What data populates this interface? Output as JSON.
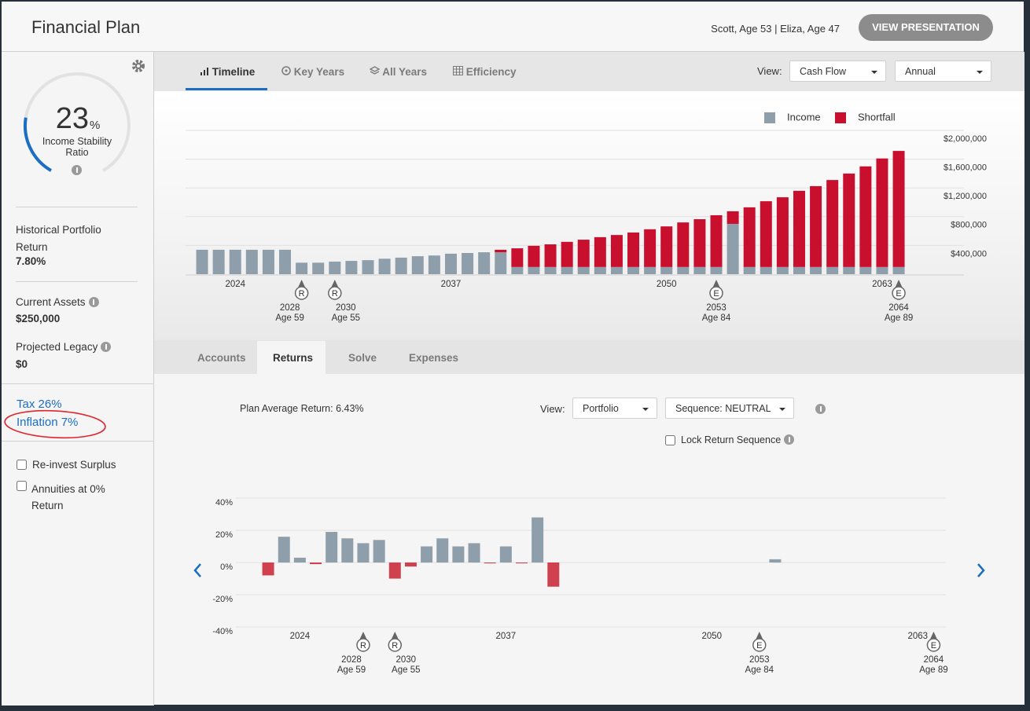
{
  "header": {
    "title": "Financial Plan",
    "clients": "Scott, Age 53 | Eliza, Age 47",
    "button": "VIEW PRESENTATION"
  },
  "sidebar": {
    "gauge": {
      "value": 23,
      "unit": "%",
      "label": "Income Stability Ratio"
    },
    "historical_return": {
      "label": "Historical Portfolio Return",
      "value": "7.80%"
    },
    "current_assets": {
      "label": "Current Assets",
      "value": "$250,000"
    },
    "projected_legacy": {
      "label": "Projected Legacy",
      "value": "$0"
    },
    "links": [
      "Tax 26%",
      "Inflation 7%"
    ],
    "options": [
      "Re-invest Surplus",
      "Annuities at 0% Return"
    ]
  },
  "tabs": [
    "Timeline",
    "Key Years",
    "All Years",
    "Efficiency"
  ],
  "view": {
    "label": "View:",
    "options": [
      "Cash Flow",
      "Annual"
    ]
  },
  "subtabs": [
    "Accounts",
    "Returns",
    "Solve",
    "Expenses"
  ],
  "returns_panel": {
    "plan_average": "Plan Average Return: 6.43%",
    "view_label": "View:",
    "portfolio": "Portfolio",
    "sequence": "Sequence: NEUTRAL",
    "lock": "Lock Return Sequence"
  },
  "chart_data": [
    {
      "type": "bar",
      "stacked": true,
      "x": [
        2022,
        2023,
        2024,
        2025,
        2026,
        2027,
        2028,
        2029,
        2030,
        2031,
        2032,
        2033,
        2034,
        2035,
        2036,
        2037,
        2038,
        2039,
        2040,
        2041,
        2042,
        2043,
        2044,
        2045,
        2046,
        2047,
        2048,
        2049,
        2050,
        2051,
        2052,
        2053,
        2054,
        2055,
        2056,
        2057,
        2058,
        2059,
        2060,
        2061,
        2062,
        2063,
        2064
      ],
      "series": [
        {
          "name": "Income",
          "color": "#8e9eab",
          "values": [
            340000,
            340000,
            340000,
            340000,
            340000,
            340000,
            160000,
            160000,
            175000,
            185000,
            195000,
            215000,
            230000,
            250000,
            260000,
            285000,
            295000,
            305000,
            305000,
            100000,
            100000,
            100000,
            100000,
            100000,
            100000,
            100000,
            100000,
            100000,
            100000,
            100000,
            100000,
            100000,
            700000,
            100000,
            100000,
            100000,
            100000,
            100000,
            100000,
            100000,
            100000,
            100000,
            100000
          ]
        },
        {
          "name": "Shortfall",
          "color": "#c8102e",
          "values": [
            0,
            0,
            0,
            0,
            0,
            0,
            0,
            0,
            0,
            0,
            0,
            0,
            0,
            0,
            0,
            0,
            0,
            0,
            35000,
            260000,
            295000,
            315000,
            350000,
            380000,
            415000,
            445000,
            480000,
            525000,
            565000,
            620000,
            665000,
            720000,
            175000,
            830000,
            915000,
            970000,
            1060000,
            1125000,
            1210000,
            1300000,
            1400000,
            1510000,
            1615000
          ]
        }
      ],
      "xlim": [
        2021.5,
        2064.5
      ],
      "xticks": [
        2024,
        2037,
        2050,
        2063
      ],
      "ylim": [
        0,
        2000000
      ],
      "yticks": [
        {
          "value": 400000,
          "label": "$400,000"
        },
        {
          "value": 800000,
          "label": "$800,000"
        },
        {
          "value": 1200000,
          "label": "$1,200,000"
        },
        {
          "value": 1600000,
          "label": "$1,600,000"
        },
        {
          "value": 2000000,
          "label": "$2,000,000"
        }
      ],
      "grid": true,
      "legend": "top-right",
      "markers": [
        {
          "x": 2028,
          "symbol": "R",
          "label": "Age 59"
        },
        {
          "x": 2030,
          "symbol": "R",
          "label": "Age 55"
        },
        {
          "x": 2053,
          "symbol": "E",
          "label": "Age 84"
        },
        {
          "x": 2064,
          "symbol": "E",
          "label": "Age 89"
        }
      ]
    },
    {
      "type": "bar",
      "x": [
        2022,
        2023,
        2024,
        2025,
        2026,
        2027,
        2028,
        2029,
        2030,
        2031,
        2032,
        2033,
        2034,
        2035,
        2036,
        2037,
        2038,
        2039,
        2040,
        2041,
        2042,
        2043,
        2044,
        2045,
        2046,
        2047,
        2048,
        2049,
        2050,
        2051,
        2052,
        2053,
        2054,
        2055,
        2056,
        2057,
        2058,
        2059,
        2060,
        2061,
        2062,
        2063,
        2064
      ],
      "values": [
        -8,
        16,
        3,
        -1,
        19,
        15,
        12,
        14,
        -10,
        -2.5,
        10,
        15,
        10,
        12,
        -0.5,
        10,
        -0.5,
        28,
        -15,
        0,
        0,
        0,
        0,
        0,
        0,
        0,
        0,
        0,
        0,
        0,
        0,
        0,
        2,
        0,
        0,
        0,
        0,
        0,
        0,
        0,
        0,
        0,
        0
      ],
      "color": "#8e9eab",
      "negative_color": "#d0414f",
      "xlim": [
        2021.5,
        2064.5
      ],
      "xticks": [
        2024,
        2037,
        2050,
        2063
      ],
      "ylim": [
        -40,
        40
      ],
      "yticks": [
        {
          "value": -40,
          "label": "-40%"
        },
        {
          "value": -20,
          "label": "-20%"
        },
        {
          "value": 0,
          "label": "0%"
        },
        {
          "value": 20,
          "label": "20%"
        },
        {
          "value": 40,
          "label": "40%"
        }
      ],
      "grid": true,
      "markers": [
        {
          "x": 2028,
          "symbol": "R",
          "label": "Age 59"
        },
        {
          "x": 2030,
          "symbol": "R",
          "label": "Age 55"
        },
        {
          "x": 2053,
          "symbol": "E",
          "label": "Age 84"
        },
        {
          "x": 2064,
          "symbol": "E",
          "label": "Age 89"
        }
      ]
    }
  ]
}
